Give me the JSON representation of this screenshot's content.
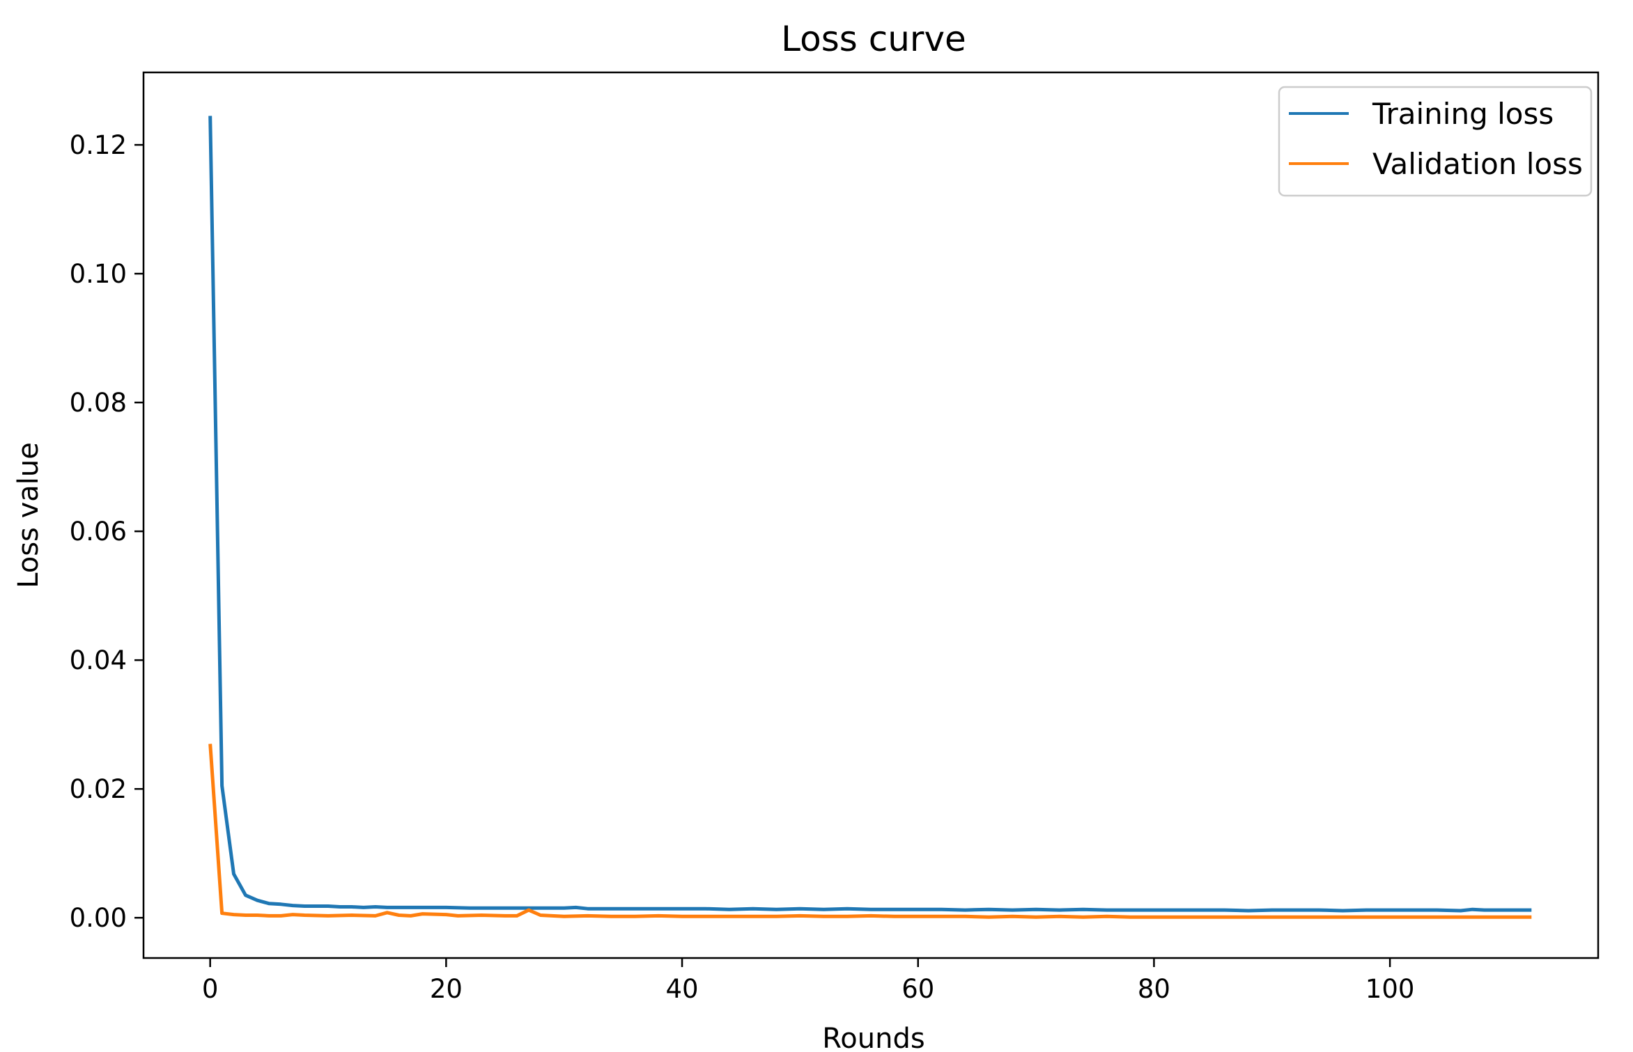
{
  "chart_data": {
    "type": "line",
    "title": "Loss curve",
    "xlabel": "Rounds",
    "ylabel": "Loss value",
    "xlim": [
      -5.65,
      117.65
    ],
    "ylim": [
      -0.00625,
      0.13125
    ],
    "xticks": [
      0,
      20,
      40,
      60,
      80,
      100
    ],
    "yticks": [
      0.0,
      0.02,
      0.04,
      0.06,
      0.08,
      0.1,
      0.12
    ],
    "xtick_labels": [
      "0",
      "20",
      "40",
      "60",
      "80",
      "100"
    ],
    "ytick_labels": [
      "0.00",
      "0.02",
      "0.04",
      "0.06",
      "0.08",
      "0.10",
      "0.12"
    ],
    "grid": false,
    "legend_position": "top-right",
    "series": [
      {
        "name": "Training loss",
        "color": "#1f77b4",
        "points": [
          [
            0,
            0.1245
          ],
          [
            1,
            0.0205
          ],
          [
            2,
            0.0068
          ],
          [
            3,
            0.0035
          ],
          [
            4,
            0.0027
          ],
          [
            5,
            0.0022
          ],
          [
            6,
            0.0021
          ],
          [
            7,
            0.0019
          ],
          [
            8,
            0.0018
          ],
          [
            9,
            0.0018
          ],
          [
            10,
            0.0018
          ],
          [
            11,
            0.0017
          ],
          [
            12,
            0.0017
          ],
          [
            13,
            0.0016
          ],
          [
            14,
            0.0017
          ],
          [
            15,
            0.0016
          ],
          [
            16,
            0.0016
          ],
          [
            17,
            0.0016
          ],
          [
            18,
            0.0016
          ],
          [
            19,
            0.0016
          ],
          [
            20,
            0.0016
          ],
          [
            22,
            0.0015
          ],
          [
            24,
            0.0015
          ],
          [
            26,
            0.0015
          ],
          [
            28,
            0.0015
          ],
          [
            30,
            0.0015
          ],
          [
            31,
            0.0016
          ],
          [
            32,
            0.0014
          ],
          [
            34,
            0.0014
          ],
          [
            36,
            0.0014
          ],
          [
            38,
            0.0014
          ],
          [
            40,
            0.0014
          ],
          [
            42,
            0.0014
          ],
          [
            44,
            0.0013
          ],
          [
            46,
            0.0014
          ],
          [
            48,
            0.0013
          ],
          [
            50,
            0.0014
          ],
          [
            52,
            0.0013
          ],
          [
            54,
            0.0014
          ],
          [
            56,
            0.0013
          ],
          [
            58,
            0.0013
          ],
          [
            60,
            0.0013
          ],
          [
            62,
            0.0013
          ],
          [
            64,
            0.0012
          ],
          [
            66,
            0.0013
          ],
          [
            68,
            0.0012
          ],
          [
            70,
            0.0013
          ],
          [
            72,
            0.0012
          ],
          [
            74,
            0.0013
          ],
          [
            76,
            0.0012
          ],
          [
            78,
            0.0012
          ],
          [
            80,
            0.0012
          ],
          [
            82,
            0.0012
          ],
          [
            84,
            0.0012
          ],
          [
            86,
            0.0012
          ],
          [
            88,
            0.0011
          ],
          [
            90,
            0.0012
          ],
          [
            92,
            0.0012
          ],
          [
            94,
            0.0012
          ],
          [
            96,
            0.0011
          ],
          [
            98,
            0.0012
          ],
          [
            100,
            0.0012
          ],
          [
            102,
            0.0012
          ],
          [
            104,
            0.0012
          ],
          [
            106,
            0.0011
          ],
          [
            107,
            0.0013
          ],
          [
            108,
            0.0012
          ],
          [
            110,
            0.0012
          ],
          [
            112,
            0.0012
          ]
        ]
      },
      {
        "name": "Validation loss",
        "color": "#ff7f0e",
        "points": [
          [
            0,
            0.027
          ],
          [
            1,
            0.0007
          ],
          [
            2,
            0.0005
          ],
          [
            3,
            0.0004
          ],
          [
            4,
            0.0004
          ],
          [
            5,
            0.0003
          ],
          [
            6,
            0.0003
          ],
          [
            7,
            0.0005
          ],
          [
            8,
            0.0004
          ],
          [
            10,
            0.0003
          ],
          [
            12,
            0.0004
          ],
          [
            14,
            0.0003
          ],
          [
            15,
            0.0008
          ],
          [
            16,
            0.0004
          ],
          [
            17,
            0.0003
          ],
          [
            18,
            0.0006
          ],
          [
            20,
            0.0005
          ],
          [
            21,
            0.0003
          ],
          [
            23,
            0.0004
          ],
          [
            25,
            0.0003
          ],
          [
            26,
            0.0003
          ],
          [
            27,
            0.0012
          ],
          [
            28,
            0.0004
          ],
          [
            30,
            0.0002
          ],
          [
            32,
            0.0003
          ],
          [
            34,
            0.0002
          ],
          [
            36,
            0.0002
          ],
          [
            38,
            0.0003
          ],
          [
            40,
            0.0002
          ],
          [
            42,
            0.0002
          ],
          [
            44,
            0.0002
          ],
          [
            46,
            0.0002
          ],
          [
            48,
            0.0002
          ],
          [
            50,
            0.0003
          ],
          [
            52,
            0.0002
          ],
          [
            54,
            0.0002
          ],
          [
            56,
            0.0003
          ],
          [
            58,
            0.0002
          ],
          [
            60,
            0.0002
          ],
          [
            62,
            0.0002
          ],
          [
            64,
            0.0002
          ],
          [
            66,
            0.0001
          ],
          [
            68,
            0.0002
          ],
          [
            70,
            0.0001
          ],
          [
            72,
            0.0002
          ],
          [
            74,
            0.0001
          ],
          [
            76,
            0.0002
          ],
          [
            78,
            0.0001
          ],
          [
            80,
            0.0001
          ],
          [
            82,
            0.0001
          ],
          [
            84,
            0.0001
          ],
          [
            86,
            0.0001
          ],
          [
            88,
            0.0001
          ],
          [
            90,
            0.0001
          ],
          [
            92,
            0.0001
          ],
          [
            94,
            0.0001
          ],
          [
            96,
            0.0001
          ],
          [
            98,
            0.0001
          ],
          [
            100,
            0.0001
          ],
          [
            102,
            0.0001
          ],
          [
            104,
            0.0001
          ],
          [
            106,
            0.0001
          ],
          [
            108,
            0.0001
          ],
          [
            110,
            0.0001
          ],
          [
            112,
            0.0001
          ]
        ]
      }
    ]
  }
}
